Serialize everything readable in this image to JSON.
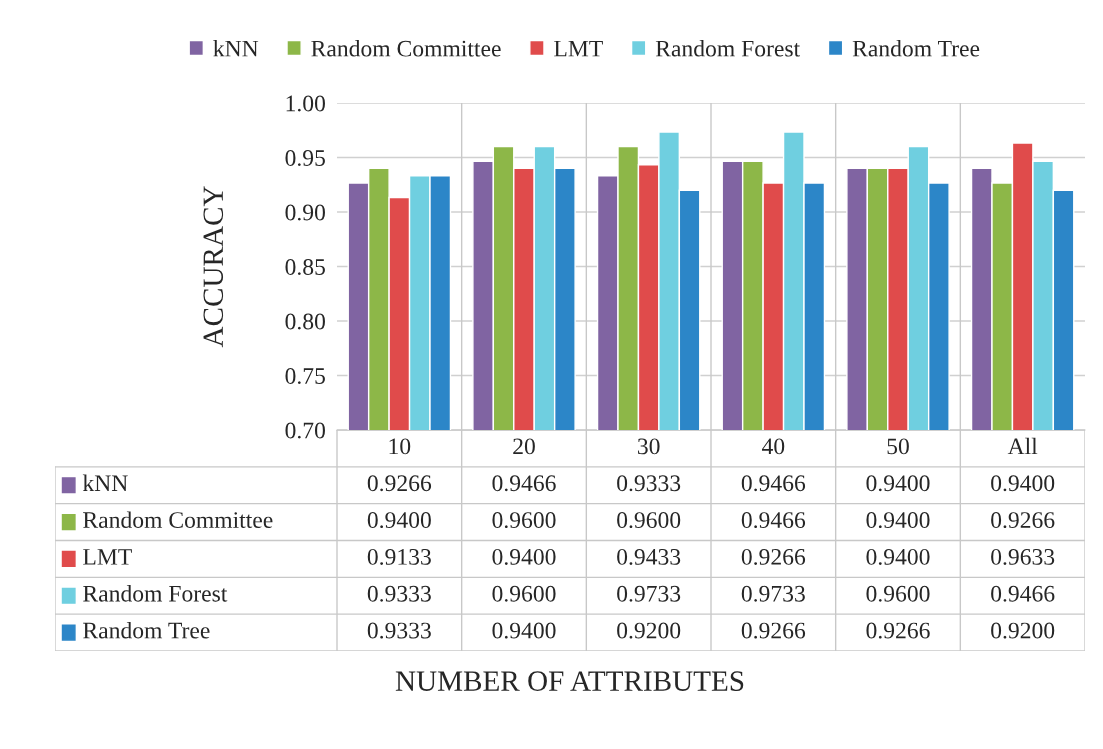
{
  "chart_data": {
    "type": "bar",
    "annotations": [
      "NUMBER OF ATTRIBUTES"
    ],
    "ylabel": "ACCURACY",
    "categories": [
      "10",
      "20",
      "30",
      "40",
      "50",
      "All"
    ],
    "series": [
      {
        "name": "kNN",
        "color": "#8064a2",
        "values": [
          0.9266,
          0.9466,
          0.9333,
          0.9466,
          0.94,
          0.94
        ],
        "value_labels": [
          "0.9266",
          "0.9466",
          "0.9333",
          "0.9466",
          "0.9400",
          "0.9400"
        ]
      },
      {
        "name": "Random Committee",
        "color": "#8db748",
        "values": [
          0.94,
          0.96,
          0.96,
          0.9466,
          0.94,
          0.9266
        ],
        "value_labels": [
          "0.9400",
          "0.9600",
          "0.9600",
          "0.9466",
          "0.9400",
          "0.9266"
        ]
      },
      {
        "name": "LMT",
        "color": "#e04b4b",
        "values": [
          0.9133,
          0.94,
          0.9433,
          0.9266,
          0.94,
          0.9633
        ],
        "value_labels": [
          "0.9133",
          "0.9400",
          "0.9433",
          "0.9266",
          "0.9400",
          "0.9633"
        ]
      },
      {
        "name": "Random Forest",
        "color": "#6fcfe0",
        "values": [
          0.9333,
          0.96,
          0.9733,
          0.9733,
          0.96,
          0.9466
        ],
        "value_labels": [
          "0.9333",
          "0.9600",
          "0.9733",
          "0.9733",
          "0.9600",
          "0.9466"
        ]
      },
      {
        "name": "Random Tree",
        "color": "#2c86c8",
        "values": [
          0.9333,
          0.94,
          0.92,
          0.9266,
          0.9266,
          0.92
        ],
        "value_labels": [
          "0.9333",
          "0.9400",
          "0.9200",
          "0.9266",
          "0.9266",
          "0.9200"
        ]
      }
    ],
    "ylim": [
      0.7,
      1.0
    ],
    "yticks": [
      {
        "value": 0.7,
        "label": "0.70"
      },
      {
        "value": 0.75,
        "label": "0.75"
      },
      {
        "value": 0.8,
        "label": "0.80"
      },
      {
        "value": 0.85,
        "label": "0.85"
      },
      {
        "value": 0.9,
        "label": "0.90"
      },
      {
        "value": 0.95,
        "label": "0.95"
      },
      {
        "value": 1.0,
        "label": "1.00"
      }
    ],
    "grid": "y",
    "legend": "top"
  }
}
